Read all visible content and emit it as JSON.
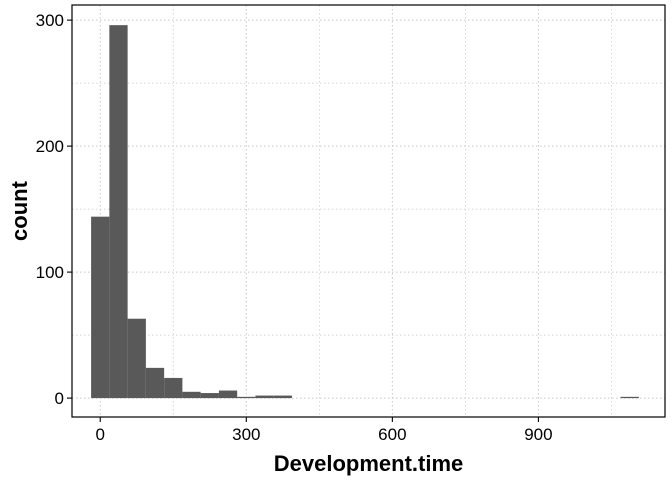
{
  "chart_data": {
    "type": "bar",
    "subtype": "histogram",
    "xlabel": "Development.time",
    "ylabel": "count",
    "xlim": [
      -58,
      1160
    ],
    "ylim": [
      -15,
      312
    ],
    "x_ticks": [
      0,
      300,
      600,
      900
    ],
    "y_ticks": [
      0,
      100,
      200,
      300
    ],
    "bin_width": 37.5,
    "bins": [
      {
        "x0": -18.75,
        "x1": 18.75,
        "count": 144
      },
      {
        "x0": 18.75,
        "x1": 56.25,
        "count": 296
      },
      {
        "x0": 56.25,
        "x1": 93.75,
        "count": 63
      },
      {
        "x0": 93.75,
        "x1": 131.25,
        "count": 24
      },
      {
        "x0": 131.25,
        "x1": 168.75,
        "count": 16
      },
      {
        "x0": 168.75,
        "x1": 206.25,
        "count": 5
      },
      {
        "x0": 206.25,
        "x1": 243.75,
        "count": 4
      },
      {
        "x0": 243.75,
        "x1": 281.25,
        "count": 6
      },
      {
        "x0": 281.25,
        "x1": 318.75,
        "count": 1
      },
      {
        "x0": 318.75,
        "x1": 356.25,
        "count": 2
      },
      {
        "x0": 356.25,
        "x1": 393.75,
        "count": 2
      },
      {
        "x0": 1068.75,
        "x1": 1106.25,
        "count": 1
      }
    ],
    "grid": true,
    "legend": "none",
    "colors": {
      "bar": "#595959",
      "grid": "#c8c8c8",
      "panel_border": "#000000"
    }
  }
}
